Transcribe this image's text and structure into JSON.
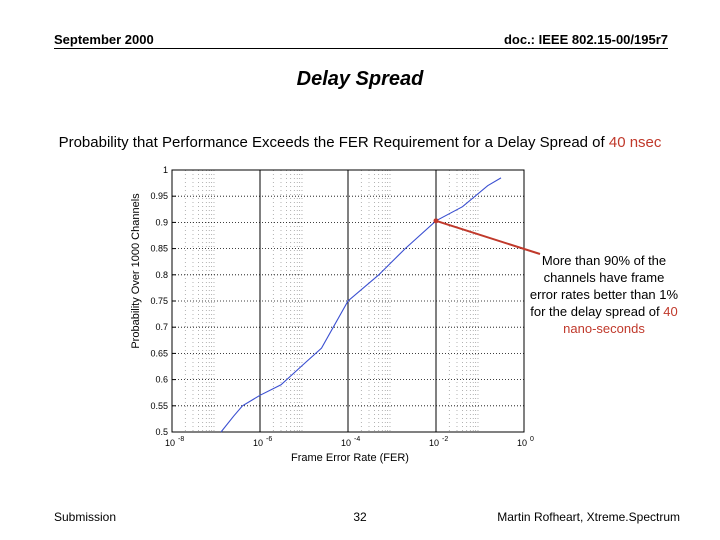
{
  "header": {
    "date": "September 2000",
    "doc": "doc.: IEEE 802.15-00/195r7"
  },
  "slide": {
    "title": "Delay Spread",
    "subtitle_prefix": "Probability that Performance Exceeds the FER Requirement for a Delay Spread of ",
    "subtitle_highlight": "40 nsec"
  },
  "annotation": {
    "text": "More than 90% of the channels have frame error rates better than 1% for the delay spread of",
    "highlight": "40 nano-seconds"
  },
  "footer": {
    "left": "Submission",
    "page": "32",
    "author": "Martin Rofheart, Xtreme.Spectrum"
  },
  "colors": {
    "curve": "#3a4fd1",
    "annotation_arrow": "#c0392b",
    "highlight": "#c0392b",
    "grid_major": "#000000",
    "grid_minor": "#000000"
  },
  "chart_data": {
    "type": "line",
    "title": "",
    "xlabel": "Frame Error Rate (FER)",
    "ylabel": "Probability Over 1000 Channels",
    "xscale": "log",
    "xlim": [
      1e-08,
      1
    ],
    "ylim": [
      0.5,
      1.0
    ],
    "x_ticks": [
      {
        "base": "10",
        "exp": "-8"
      },
      {
        "base": "10",
        "exp": "-6"
      },
      {
        "base": "10",
        "exp": "-4"
      },
      {
        "base": "10",
        "exp": "-2"
      },
      {
        "base": "10",
        "exp": "0"
      }
    ],
    "y_ticks": [
      "0.5",
      "0.55",
      "0.6",
      "0.65",
      "0.7",
      "0.75",
      "0.8",
      "0.85",
      "0.9",
      "0.95",
      "1"
    ],
    "grid": true,
    "series": [
      {
        "x": [
          1.3e-07,
          2.5e-07,
          4e-07,
          1e-06,
          3e-06,
          1e-05,
          2.5e-05,
          0.0001,
          0.0005,
          0.002,
          0.01,
          0.04,
          0.15,
          0.3
        ],
        "y": [
          0.5,
          0.53,
          0.55,
          0.57,
          0.59,
          0.63,
          0.66,
          0.75,
          0.8,
          0.85,
          0.903,
          0.93,
          0.97,
          0.985
        ]
      }
    ],
    "annotation_point": {
      "x": 0.01,
      "y": 0.903
    }
  }
}
